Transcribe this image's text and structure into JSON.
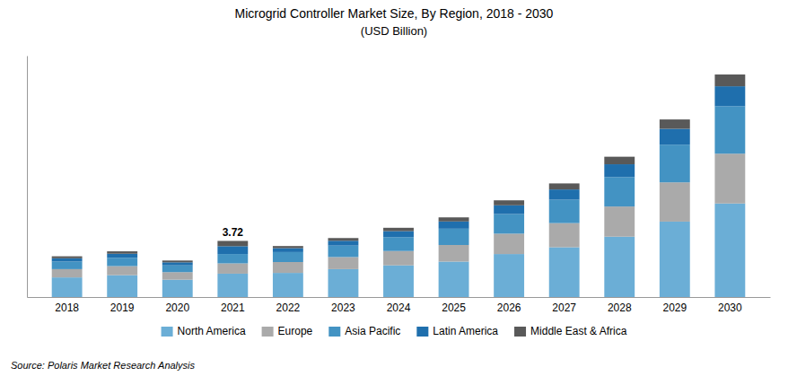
{
  "chart_data": {
    "type": "bar",
    "stacked": true,
    "title": "Microgrid Controller Market Size, By Region, 2018 - 2030",
    "subtitle": "(USD Billion)",
    "categories": [
      2018,
      2019,
      2020,
      2021,
      2022,
      2023,
      2024,
      2025,
      2026,
      2027,
      2028,
      2029,
      2030
    ],
    "series": [
      {
        "name": "North America",
        "color": "#6baed6",
        "values": [
          1.3,
          1.45,
          1.15,
          1.55,
          1.6,
          1.85,
          2.1,
          2.35,
          2.85,
          3.3,
          4.0,
          5.0,
          6.2
        ]
      },
      {
        "name": "Europe",
        "color": "#aaaaaa",
        "values": [
          0.55,
          0.6,
          0.5,
          0.68,
          0.72,
          0.8,
          0.95,
          1.1,
          1.35,
          1.6,
          2.0,
          2.6,
          3.3
        ]
      },
      {
        "name": "Asia Pacific",
        "color": "#4393c3",
        "values": [
          0.5,
          0.55,
          0.45,
          0.62,
          0.66,
          0.76,
          0.92,
          1.08,
          1.3,
          1.55,
          1.95,
          2.5,
          3.15
        ]
      },
      {
        "name": "Latin America",
        "color": "#1f6fad",
        "values": [
          0.22,
          0.27,
          0.2,
          0.52,
          0.26,
          0.32,
          0.4,
          0.48,
          0.58,
          0.68,
          0.85,
          1.05,
          1.32
        ]
      },
      {
        "name": "Middle East & Africa",
        "color": "#595959",
        "values": [
          0.13,
          0.16,
          0.12,
          0.35,
          0.14,
          0.18,
          0.22,
          0.27,
          0.33,
          0.4,
          0.5,
          0.62,
          0.78
        ]
      }
    ],
    "ylim": [
      0,
      16
    ],
    "tick_labels": "x",
    "grid": false,
    "legend": "bottom",
    "annotations": [
      {
        "text": "3.72",
        "x": 2021
      }
    ],
    "source": "Source: Polaris  Market Research Analysis"
  }
}
